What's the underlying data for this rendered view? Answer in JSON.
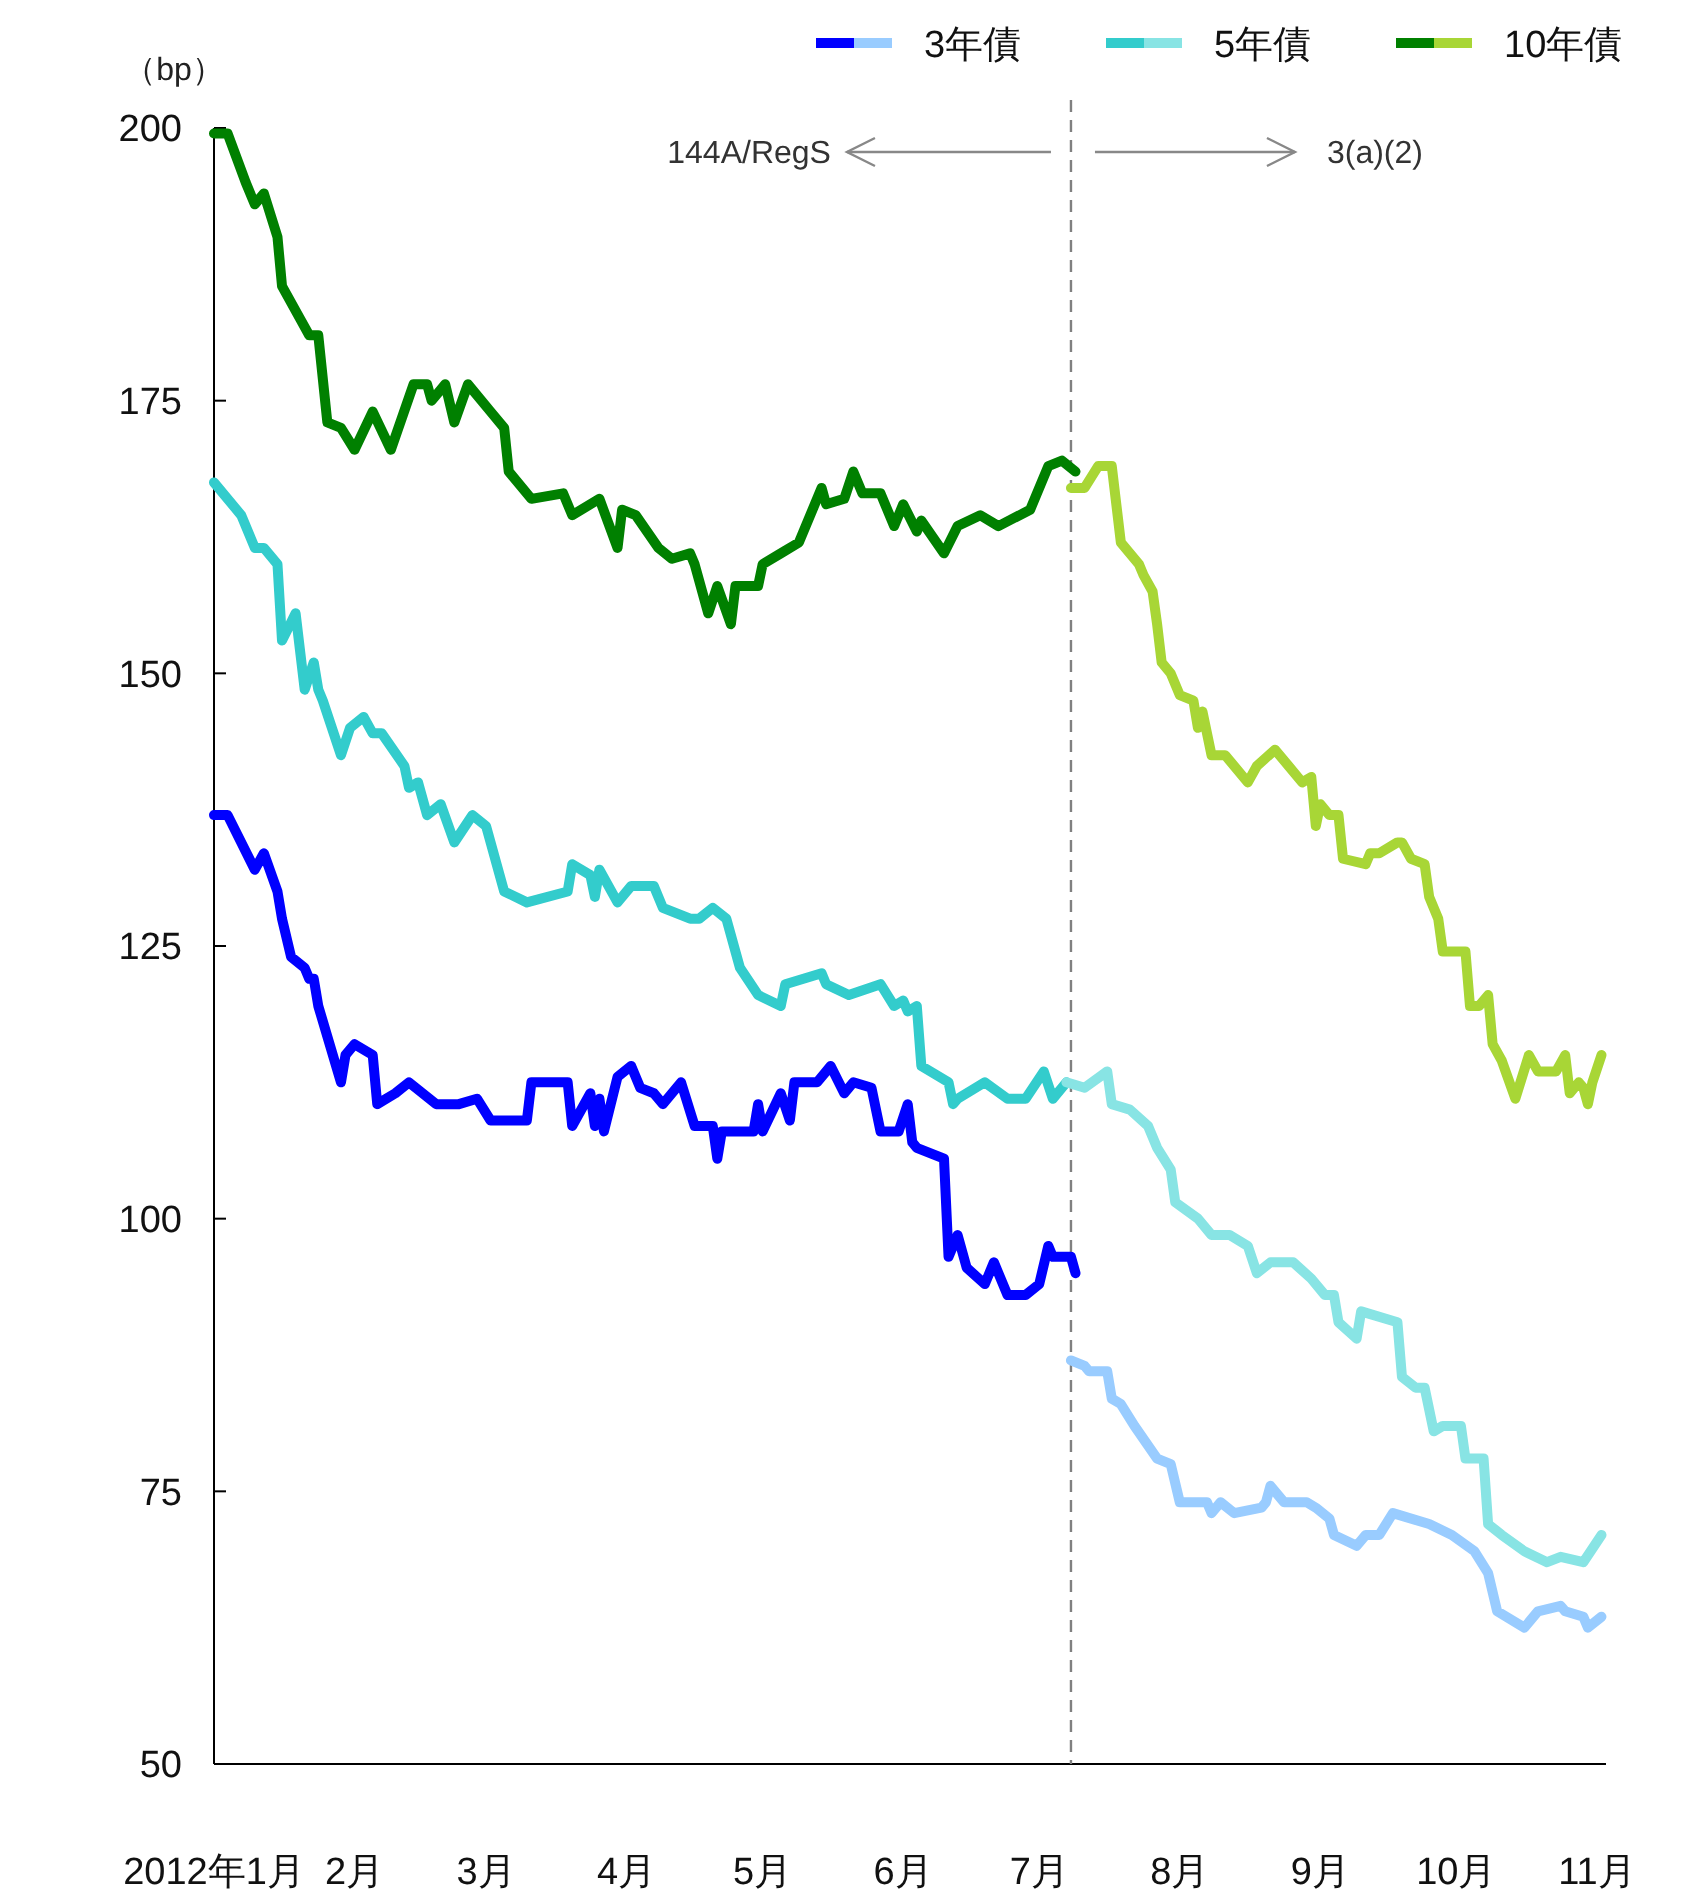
{
  "chart_data": {
    "type": "line",
    "ylabel": "（bp）",
    "ylim": [
      50,
      200
    ],
    "yticks": [
      50,
      75,
      100,
      125,
      150,
      175,
      200
    ],
    "xlim": [
      "2012-01-01",
      "2012-11-03"
    ],
    "xticks": [
      {
        "value": "2012-01-01",
        "label": "2012年1月"
      },
      {
        "value": "2012-02-01",
        "label": "2月"
      },
      {
        "value": "2012-03-01",
        "label": "3月"
      },
      {
        "value": "2012-04-01",
        "label": "4月"
      },
      {
        "value": "2012-05-01",
        "label": "5月"
      },
      {
        "value": "2012-06-01",
        "label": "6月"
      },
      {
        "value": "2012-07-01",
        "label": "7月"
      },
      {
        "value": "2012-08-01",
        "label": "8月"
      },
      {
        "value": "2012-09-01",
        "label": "9月"
      },
      {
        "value": "2012-10-01",
        "label": "10月"
      },
      {
        "value": "2012-11-01",
        "label": "11月"
      }
    ],
    "grid": false,
    "legend": "top right",
    "marker": "none",
    "line_style": "solid",
    "annotations": [
      "144A/RegS",
      "3(a)(2)"
    ],
    "ref_lines": [
      {
        "axis": "x",
        "value": "2012-07-08",
        "color": "#808080",
        "line_style": "dashed"
      }
    ],
    "series": [
      {
        "name": "3年債",
        "color": "#0000ff",
        "x": [
          "2012-01-01",
          "2012-01-04",
          "2012-01-10",
          "2012-01-12",
          "2012-01-15",
          "2012-01-16",
          "2012-01-18",
          "2012-01-21",
          "2012-01-22",
          "2012-01-23",
          "2012-01-24",
          "2012-01-29",
          "2012-01-30",
          "2012-02-01",
          "2012-02-05",
          "2012-02-06",
          "2012-02-10",
          "2012-02-13",
          "2012-02-19",
          "2012-02-24",
          "2012-02-28",
          "2012-03-02",
          "2012-03-10",
          "2012-03-11",
          "2012-03-19",
          "2012-03-20",
          "2012-03-24",
          "2012-03-25",
          "2012-03-26",
          "2012-03-27",
          "2012-03-30",
          "2012-04-02",
          "2012-04-04",
          "2012-04-07",
          "2012-04-09",
          "2012-04-13",
          "2012-04-16",
          "2012-04-20",
          "2012-04-21",
          "2012-04-22",
          "2012-04-26",
          "2012-04-29",
          "2012-04-30",
          "2012-05-01",
          "2012-05-05",
          "2012-05-07",
          "2012-05-08",
          "2012-05-13",
          "2012-05-16",
          "2012-05-19",
          "2012-05-21",
          "2012-05-25",
          "2012-05-27",
          "2012-05-31",
          "2012-06-02",
          "2012-06-03",
          "2012-06-04",
          "2012-06-10",
          "2012-06-11",
          "2012-06-13",
          "2012-06-15",
          "2012-06-19",
          "2012-06-21",
          "2012-06-24",
          "2012-06-28",
          "2012-07-01",
          "2012-07-03",
          "2012-07-04",
          "2012-07-08",
          "2012-07-09"
        ],
        "values": [
          137,
          137,
          132,
          133.5,
          130,
          127.5,
          124,
          123,
          122,
          122,
          119.5,
          112.5,
          115,
          116,
          115,
          110.5,
          111.5,
          112.5,
          110.5,
          110.5,
          111,
          109,
          109,
          112.5,
          112.5,
          108.5,
          111.5,
          108.5,
          111,
          108,
          113,
          114,
          112,
          111.5,
          110.5,
          112.5,
          108.5,
          108.5,
          105.5,
          108,
          108,
          108,
          110.5,
          108,
          111.5,
          109,
          112.5,
          112.5,
          114,
          111.5,
          112.5,
          112,
          108,
          108,
          110.5,
          107,
          106.5,
          105.5,
          96.5,
          98.5,
          95.5,
          94,
          96,
          93,
          93,
          94,
          97.5,
          96.5,
          96.5,
          95
        ]
      },
      {
        "color": "#99ccff",
        "x": [
          "2012-07-08",
          "2012-07-11",
          "2012-07-12",
          "2012-07-16",
          "2012-07-17",
          "2012-07-19",
          "2012-07-22",
          "2012-07-27",
          "2012-07-30",
          "2012-08-01",
          "2012-08-07",
          "2012-08-08",
          "2012-08-10",
          "2012-08-13",
          "2012-08-19",
          "2012-08-20",
          "2012-08-21",
          "2012-08-24",
          "2012-08-29",
          "2012-08-31",
          "2012-09-03",
          "2012-09-04",
          "2012-09-09",
          "2012-09-11",
          "2012-09-14",
          "2012-09-17",
          "2012-09-25",
          "2012-09-30",
          "2012-10-05",
          "2012-10-08",
          "2012-10-10",
          "2012-10-16",
          "2012-10-19",
          "2012-10-24",
          "2012-10-25",
          "2012-10-29",
          "2012-10-30",
          "2012-11-02"
        ],
        "values": [
          87,
          86.5,
          86,
          86,
          83.5,
          83,
          81,
          78,
          77.5,
          74,
          74,
          73,
          74,
          73,
          73.5,
          74,
          75.5,
          74,
          74,
          73.5,
          72.5,
          71,
          70,
          71,
          71,
          73,
          72,
          71,
          69.5,
          67.5,
          64,
          62.5,
          64,
          64.5,
          64,
          63.5,
          62.5,
          63.5
        ]
      },
      {
        "name": "5年債",
        "color": "#33cccc",
        "x": [
          "2012-01-01",
          "2012-01-07",
          "2012-01-10",
          "2012-01-12",
          "2012-01-15",
          "2012-01-16",
          "2012-01-19",
          "2012-01-21",
          "2012-01-23",
          "2012-01-24",
          "2012-01-25",
          "2012-01-29",
          "2012-01-31",
          "2012-02-03",
          "2012-02-05",
          "2012-02-07",
          "2012-02-12",
          "2012-02-13",
          "2012-02-15",
          "2012-02-17",
          "2012-02-20",
          "2012-02-23",
          "2012-02-27",
          "2012-03-01",
          "2012-03-05",
          "2012-03-10",
          "2012-03-19",
          "2012-03-20",
          "2012-03-24",
          "2012-03-25",
          "2012-03-26",
          "2012-03-30",
          "2012-04-02",
          "2012-04-07",
          "2012-04-09",
          "2012-04-15",
          "2012-04-17",
          "2012-04-20",
          "2012-04-23",
          "2012-04-26",
          "2012-04-30",
          "2012-05-05",
          "2012-05-06",
          "2012-05-14",
          "2012-05-15",
          "2012-05-20",
          "2012-05-27",
          "2012-05-30",
          "2012-06-01",
          "2012-06-02",
          "2012-06-04",
          "2012-06-05",
          "2012-06-11",
          "2012-06-12",
          "2012-06-13",
          "2012-06-19",
          "2012-06-24",
          "2012-06-28",
          "2012-07-02",
          "2012-07-04",
          "2012-07-07"
        ],
        "values": [
          167.5,
          164.5,
          161.5,
          161.5,
          160,
          153,
          155.5,
          148.5,
          151,
          148.5,
          147.5,
          142.5,
          145,
          146,
          144.5,
          144.5,
          141.5,
          139.5,
          140,
          137,
          138,
          134.5,
          137,
          136,
          130,
          129,
          130,
          132.5,
          131.5,
          129.5,
          132,
          129,
          130.5,
          130.5,
          128.5,
          127.5,
          127.5,
          128.5,
          127.5,
          123,
          120.5,
          119.5,
          121.5,
          122.5,
          121.5,
          120.5,
          121.5,
          119.5,
          120,
          119,
          119.5,
          114,
          112.5,
          110.5,
          111,
          112.5,
          111,
          111,
          113.5,
          111,
          112.5
        ]
      },
      {
        "color": "#88e4e4",
        "x": [
          "2012-07-07",
          "2012-07-11",
          "2012-07-16",
          "2012-07-17",
          "2012-07-21",
          "2012-07-25",
          "2012-07-27",
          "2012-07-30",
          "2012-07-31",
          "2012-08-05",
          "2012-08-08",
          "2012-08-12",
          "2012-08-16",
          "2012-08-18",
          "2012-08-21",
          "2012-08-26",
          "2012-08-30",
          "2012-09-02",
          "2012-09-04",
          "2012-09-05",
          "2012-09-09",
          "2012-09-10",
          "2012-09-18",
          "2012-09-19",
          "2012-09-22",
          "2012-09-24",
          "2012-09-26",
          "2012-09-28",
          "2012-10-02",
          "2012-10-03",
          "2012-10-07",
          "2012-10-08",
          "2012-10-11",
          "2012-10-16",
          "2012-10-21",
          "2012-10-24",
          "2012-10-29",
          "2012-11-02"
        ],
        "values": [
          112.5,
          112,
          113.5,
          110.5,
          110,
          108.5,
          106.5,
          104.5,
          101.5,
          100,
          98.5,
          98.5,
          97.5,
          95,
          96,
          96,
          94.5,
          93,
          93,
          90.5,
          89,
          91.5,
          90.5,
          85.5,
          84.5,
          84.5,
          80.5,
          81,
          81,
          78,
          78,
          72,
          71,
          69.5,
          68.5,
          69,
          68.5,
          71
        ]
      },
      {
        "name": "10年債",
        "color": "#008000",
        "x": [
          "2012-01-01",
          "2012-01-04",
          "2012-01-08",
          "2012-01-10",
          "2012-01-12",
          "2012-01-15",
          "2012-01-16",
          "2012-01-20",
          "2012-01-22",
          "2012-01-24",
          "2012-01-26",
          "2012-01-29",
          "2012-02-01",
          "2012-02-05",
          "2012-02-09",
          "2012-02-14",
          "2012-02-17",
          "2012-02-18",
          "2012-02-21",
          "2012-02-23",
          "2012-02-26",
          "2012-03-02",
          "2012-03-05",
          "2012-03-06",
          "2012-03-11",
          "2012-03-18",
          "2012-03-20",
          "2012-03-26",
          "2012-03-30",
          "2012-03-31",
          "2012-04-03",
          "2012-04-08",
          "2012-04-11",
          "2012-04-15",
          "2012-04-16",
          "2012-04-19",
          "2012-04-21",
          "2012-04-24",
          "2012-04-25",
          "2012-04-30",
          "2012-05-01",
          "2012-05-05",
          "2012-05-09",
          "2012-05-14",
          "2012-05-15",
          "2012-05-19",
          "2012-05-21",
          "2012-05-23",
          "2012-05-27",
          "2012-05-30",
          "2012-06-01",
          "2012-06-04",
          "2012-06-05",
          "2012-06-10",
          "2012-06-13",
          "2012-06-18",
          "2012-06-22",
          "2012-06-29",
          "2012-07-03",
          "2012-07-06",
          "2012-07-09"
        ],
        "values": [
          199.5,
          199.5,
          195,
          193,
          194,
          190,
          185.5,
          182.5,
          181,
          181,
          173,
          172.5,
          170.5,
          174,
          170.5,
          176.5,
          176.5,
          175,
          176.5,
          173,
          176.5,
          174,
          172.5,
          168.5,
          166,
          166.5,
          164.5,
          166,
          161.5,
          165,
          164.5,
          161.5,
          160.5,
          161,
          160,
          155.5,
          158,
          154.5,
          158,
          158,
          160,
          161,
          162,
          167,
          165.5,
          166,
          168.5,
          166.5,
          166.5,
          163.5,
          165.5,
          163,
          164,
          161,
          163.5,
          164.5,
          163.5,
          165,
          169,
          169.5,
          168.5
        ]
      },
      {
        "color": "#a8d636",
        "x": [
          "2012-07-08",
          "2012-07-11",
          "2012-07-14",
          "2012-07-17",
          "2012-07-19",
          "2012-07-23",
          "2012-07-24",
          "2012-07-26",
          "2012-07-27",
          "2012-07-28",
          "2012-07-30",
          "2012-08-01",
          "2012-08-04",
          "2012-08-05",
          "2012-08-06",
          "2012-08-08",
          "2012-08-11",
          "2012-08-16",
          "2012-08-18",
          "2012-08-22",
          "2012-08-25",
          "2012-08-28",
          "2012-08-30",
          "2012-08-31",
          "2012-09-01",
          "2012-09-03",
          "2012-09-05",
          "2012-09-06",
          "2012-09-11",
          "2012-09-12",
          "2012-09-14",
          "2012-09-18",
          "2012-09-19",
          "2012-09-21",
          "2012-09-24",
          "2012-09-25",
          "2012-09-27",
          "2012-09-28",
          "2012-10-03",
          "2012-10-04",
          "2012-10-06",
          "2012-10-08",
          "2012-10-09",
          "2012-10-11",
          "2012-10-14",
          "2012-10-17",
          "2012-10-19",
          "2012-10-23",
          "2012-10-25",
          "2012-10-26",
          "2012-10-28",
          "2012-10-29",
          "2012-10-30",
          "2012-10-31",
          "2012-11-02"
        ],
        "values": [
          167,
          167,
          169,
          169,
          162,
          160,
          159,
          157.5,
          154.5,
          151,
          150,
          148,
          147.5,
          145,
          146.5,
          142.5,
          142.5,
          140,
          141.5,
          143,
          141.5,
          140,
          140.5,
          136,
          138,
          137,
          137,
          133,
          132.5,
          133.5,
          133.5,
          134.5,
          134.5,
          133,
          132.5,
          129.5,
          127.5,
          124.5,
          124.5,
          119.5,
          119.5,
          120.5,
          116,
          114.5,
          111,
          115,
          113.5,
          113.5,
          115,
          111.5,
          112.5,
          112,
          110.5,
          112.5,
          115
        ]
      }
    ]
  }
}
